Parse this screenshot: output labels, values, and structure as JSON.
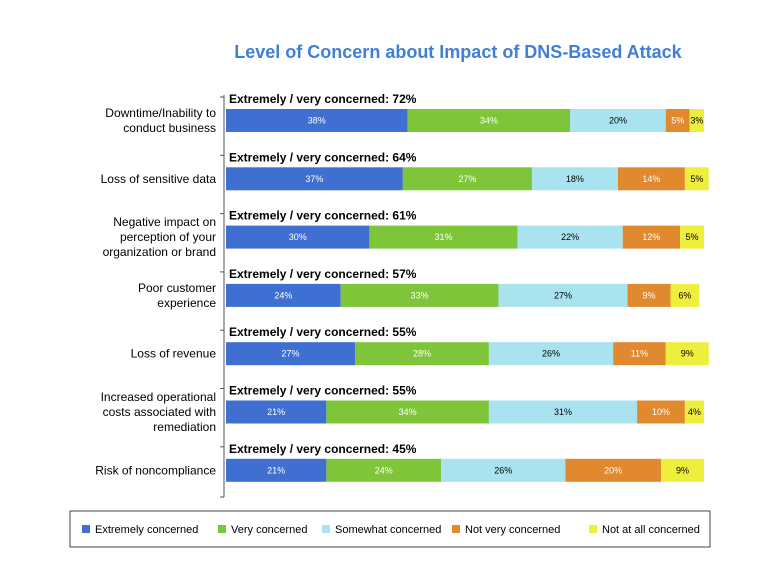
{
  "chart_data": {
    "type": "bar",
    "orientation": "horizontal",
    "stacked": true,
    "title": "Level of Concern about Impact of DNS-Based Attack",
    "xlabel": "",
    "ylabel": "",
    "xlim": [
      0,
      100
    ],
    "categories": [
      [
        "Downtime/Inability to",
        "conduct business"
      ],
      [
        "Loss of sensitive data"
      ],
      [
        "Negative impact on",
        "perception of your",
        "organization or brand"
      ],
      [
        "Poor customer",
        "experience"
      ],
      [
        "Loss of revenue"
      ],
      [
        "Increased operational",
        "costs associated with",
        "remediation"
      ],
      [
        "Risk of noncompliance"
      ]
    ],
    "annotations": [
      "Extremely / very concerned: 72%",
      "Extremely / very concerned: 64%",
      "Extremely / very concerned: 61%",
      "Extremely / very concerned: 57%",
      "Extremely / very concerned: 55%",
      "Extremely / very concerned: 55%",
      "Extremely / very concerned: 45%"
    ],
    "series": [
      {
        "name": "Extremely concerned",
        "color": "#3F6FD1",
        "label_color": "#ffffff",
        "values": [
          38,
          37,
          30,
          24,
          27,
          21,
          21
        ]
      },
      {
        "name": "Very concerned",
        "color": "#7FC53A",
        "label_color": "#ffffff",
        "values": [
          34,
          27,
          31,
          33,
          28,
          34,
          24
        ]
      },
      {
        "name": "Somewhat concerned",
        "color": "#A9E3F0",
        "label_color": "#000000",
        "values": [
          20,
          18,
          22,
          27,
          26,
          31,
          26
        ]
      },
      {
        "name": "Not very concerned",
        "color": "#E0892E",
        "label_color": "#ffffff",
        "values": [
          5,
          14,
          12,
          9,
          11,
          10,
          20
        ]
      },
      {
        "name": "Not at all concerned",
        "color": "#EEEE3D",
        "label_color": "#000000",
        "values": [
          3,
          5,
          5,
          6,
          9,
          4,
          9
        ]
      }
    ],
    "legend_position": "bottom",
    "title_color": "#3F7FD9"
  }
}
